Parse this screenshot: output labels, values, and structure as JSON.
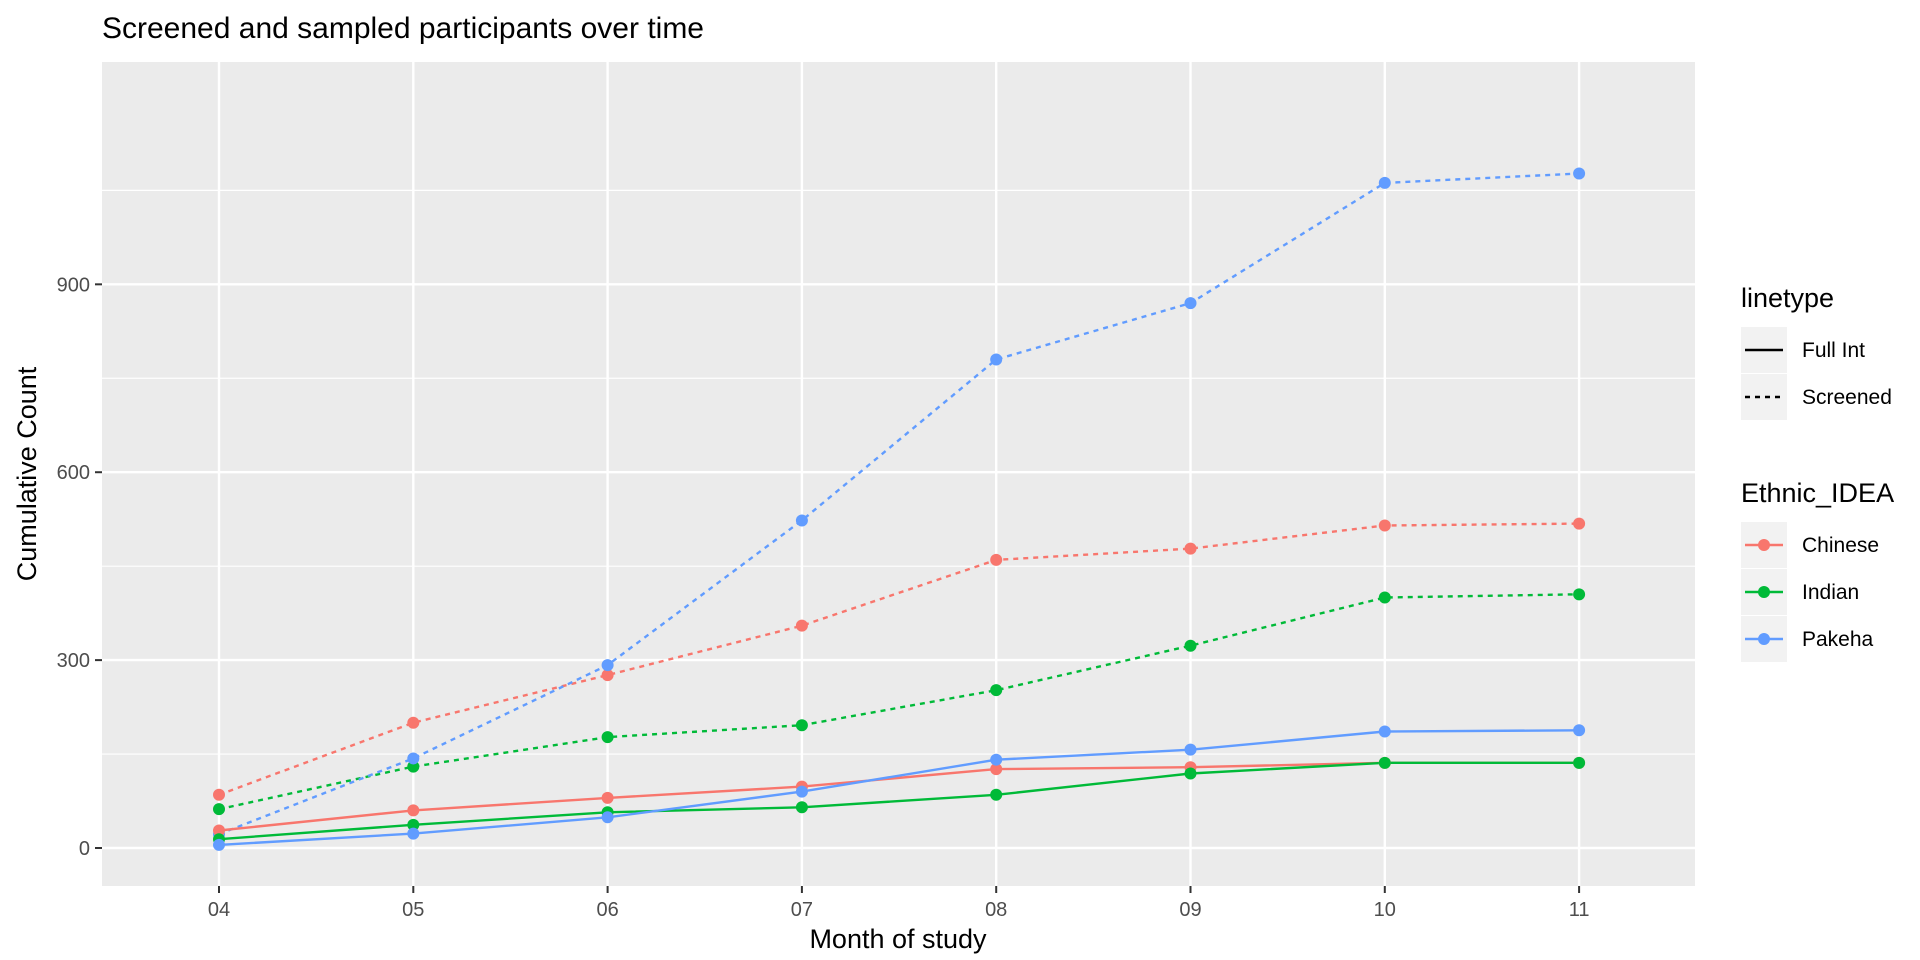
{
  "chart_data": {
    "type": "line",
    "title": "Screened and sampled participants over time",
    "xlabel": "Month of study",
    "ylabel": "Cumulative Count",
    "categories": [
      "04",
      "05",
      "06",
      "07",
      "08",
      "09",
      "10",
      "11"
    ],
    "ylim": [
      -80,
      1250
    ],
    "yticks": [
      0,
      300,
      600,
      900
    ],
    "grid": true,
    "legend_position": "right",
    "linetype_legend": {
      "title": "linetype",
      "entries": [
        {
          "label": "Full Int",
          "dash": "solid"
        },
        {
          "label": "Screened",
          "dash": "dotted"
        }
      ]
    },
    "color_legend": {
      "title": "Ethnic_IDEA",
      "entries": [
        {
          "label": "Chinese",
          "color": "#F8766D"
        },
        {
          "label": "Indian",
          "color": "#00BA38"
        },
        {
          "label": "Pakeha",
          "color": "#619CFF"
        }
      ]
    },
    "series": [
      {
        "ethnicity": "Chinese",
        "linetype": "Screened",
        "color": "#F8766D",
        "values": [
          85,
          200,
          276,
          355,
          460,
          478,
          515,
          518
        ]
      },
      {
        "ethnicity": "Indian",
        "linetype": "Screened",
        "color": "#00BA38",
        "values": [
          62,
          130,
          177,
          196,
          252,
          323,
          400,
          405
        ]
      },
      {
        "ethnicity": "Pakeha",
        "linetype": "Screened",
        "color": "#619CFF",
        "values": [
          22,
          143,
          292,
          523,
          780,
          870,
          1062,
          1077
        ]
      },
      {
        "ethnicity": "Chinese",
        "linetype": "Full Int",
        "color": "#F8766D",
        "values": [
          28,
          60,
          80,
          98,
          126,
          129,
          136,
          136
        ]
      },
      {
        "ethnicity": "Indian",
        "linetype": "Full Int",
        "color": "#00BA38",
        "values": [
          14,
          37,
          57,
          65,
          85,
          119,
          136,
          136
        ]
      },
      {
        "ethnicity": "Pakeha",
        "linetype": "Full Int",
        "color": "#619CFF",
        "values": [
          5,
          23,
          49,
          90,
          141,
          157,
          186,
          188
        ]
      }
    ]
  }
}
